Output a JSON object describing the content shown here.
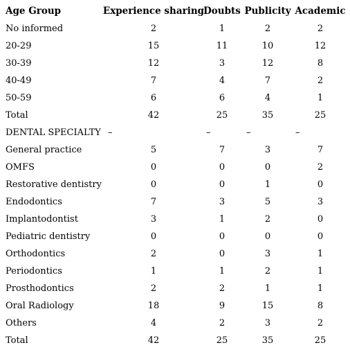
{
  "header": {
    "age_group": "Age Group",
    "experience_sharing": "Experience sharing",
    "doubts": "Doubts",
    "publicity": "Publicity",
    "academic": "Academic"
  },
  "age_rows": [
    {
      "label": "No informed",
      "values": [
        "2",
        "1",
        "2",
        "2"
      ]
    },
    {
      "label": "20-29",
      "values": [
        "15",
        "11",
        "10",
        "12"
      ]
    },
    {
      "label": "30-39",
      "values": [
        "12",
        "3",
        "12",
        "8"
      ]
    },
    {
      "label": "40-49",
      "values": [
        "7",
        "4",
        "7",
        "2"
      ]
    },
    {
      "label": "50-59",
      "values": [
        "6",
        "6",
        "4",
        "1"
      ]
    },
    {
      "label": "Total",
      "values": [
        "42",
        "25",
        "35",
        "25"
      ]
    }
  ],
  "specialty_section": {
    "label": "DENTAL SPECIALTY",
    "values": [
      "–",
      "–",
      "–",
      "–"
    ]
  },
  "specialty_rows": [
    {
      "label": "General practice",
      "values": [
        "5",
        "7",
        "3",
        "7"
      ]
    },
    {
      "label": "OMFS",
      "values": [
        "0",
        "0",
        "0",
        "2"
      ]
    },
    {
      "label": "Restorative dentistry",
      "values": [
        "0",
        "0",
        "1",
        "0"
      ]
    },
    {
      "label": "Endodontics",
      "values": [
        "7",
        "3",
        "5",
        "3"
      ]
    },
    {
      "label": "Implantodontist",
      "values": [
        "3",
        "1",
        "2",
        "0"
      ]
    },
    {
      "label": "Pediatric dentistry",
      "values": [
        "0",
        "0",
        "0",
        "0"
      ]
    },
    {
      "label": "Orthodontics",
      "values": [
        "2",
        "0",
        "3",
        "1"
      ]
    },
    {
      "label": "Periodontics",
      "values": [
        "1",
        "1",
        "2",
        "1"
      ]
    },
    {
      "label": "Prosthodontics",
      "values": [
        "2",
        "2",
        "1",
        "1"
      ]
    },
    {
      "label": "Oral Radiology",
      "values": [
        "18",
        "9",
        "15",
        "8"
      ]
    },
    {
      "label": "Others",
      "values": [
        "4",
        "2",
        "3",
        "2"
      ]
    },
    {
      "label": "Total",
      "values": [
        "42",
        "25",
        "35",
        "25"
      ]
    }
  ]
}
